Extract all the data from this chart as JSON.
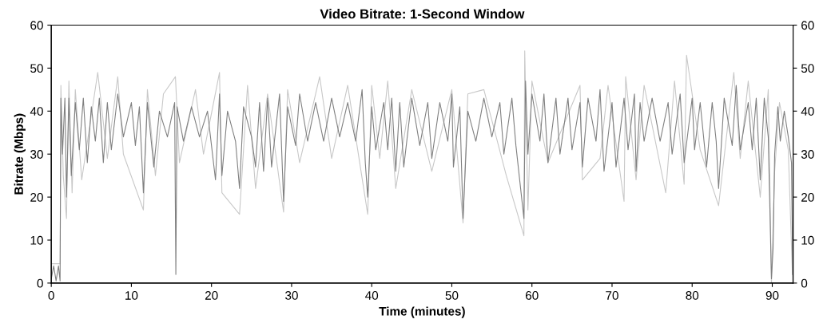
{
  "chart_data": {
    "type": "line",
    "title": "Video Bitrate: 1-Second Window",
    "xlabel": "Time (minutes)",
    "ylabel": "Bitrate (Mbps)",
    "xlim": [
      0,
      92.6
    ],
    "xticks": [
      0,
      10,
      20,
      30,
      40,
      50,
      60,
      70,
      80,
      90
    ],
    "ylim": [
      0,
      60
    ],
    "yticks": [
      0,
      10,
      20,
      30,
      40,
      50,
      60
    ],
    "y2lim": [
      0,
      60
    ],
    "y2ticks": [
      0,
      10,
      20,
      30,
      40,
      50,
      60
    ],
    "grid": false,
    "marker": "none",
    "line_style": "solid",
    "series": [
      {
        "color": "#c8c8c8",
        "x": [
          0,
          1.1,
          1.2,
          1.5,
          1.9,
          2.2,
          2.6,
          3,
          3.8,
          5.8,
          7,
          8.3,
          9,
          11.5,
          12,
          13,
          14,
          15.5,
          16,
          18,
          19,
          21,
          21.3,
          23.5,
          24.5,
          25.5,
          27,
          29,
          29.5,
          31,
          33.5,
          35,
          37,
          39.5,
          40,
          41,
          42,
          43,
          45,
          47.5,
          50,
          51.4,
          52,
          54,
          56.8,
          59,
          59.1,
          59.5,
          60,
          62,
          66,
          66.3,
          68.5,
          69.5,
          71.5,
          71.7,
          73,
          74,
          76.7,
          77.8,
          79,
          79.3,
          81,
          83.3,
          85.2,
          86,
          87,
          88.5,
          89.5,
          89.9,
          90.3,
          90.9,
          92,
          92.55
        ],
        "values": [
          4.5,
          4.5,
          46,
          25,
          15,
          47,
          21,
          45,
          24,
          49,
          29,
          48,
          30,
          17,
          45,
          25,
          44,
          48,
          28,
          45,
          30,
          49,
          21,
          16,
          46,
          22,
          44,
          16.5,
          45,
          28,
          48,
          29,
          46,
          16,
          46,
          29,
          47,
          22,
          45,
          26,
          45,
          14,
          44,
          45,
          25,
          11,
          54,
          17,
          47,
          28,
          46,
          24,
          29,
          46,
          19,
          48,
          24,
          46,
          21,
          47,
          23,
          53,
          31,
          18,
          49,
          29,
          47,
          20,
          45,
          0,
          26,
          42,
          31,
          0
        ]
      },
      {
        "color": "#808080",
        "x": [
          0,
          0.3,
          0.6,
          0.9,
          1.1,
          1.2,
          1.4,
          1.7,
          1.9,
          2.2,
          2.5,
          3,
          3.5,
          4,
          4.5,
          5,
          5.5,
          6,
          6.5,
          7,
          7.5,
          8.3,
          9,
          10,
          10.5,
          11,
          11.5,
          12,
          12.8,
          13.5,
          14.5,
          15.4,
          15.55,
          15.7,
          16.5,
          17.5,
          18.5,
          19.5,
          20.5,
          21,
          21.3,
          22,
          23,
          23.5,
          24,
          25,
          25.5,
          26,
          26.5,
          27,
          27.5,
          28.5,
          29,
          29.5,
          30.5,
          31,
          32,
          33,
          34,
          35,
          36,
          37,
          38,
          38.8,
          39.2,
          39.5,
          40,
          40.5,
          41.5,
          42,
          42.5,
          43,
          43.5,
          44,
          45,
          46,
          47,
          47.5,
          48.5,
          49.5,
          50,
          50.2,
          51,
          51.4,
          52,
          53,
          54,
          55,
          56,
          56.5,
          57.5,
          58,
          59,
          59.2,
          59.5,
          60,
          61,
          61.5,
          62,
          63,
          63.5,
          64.5,
          65,
          66,
          66.3,
          67,
          68,
          68.5,
          69,
          70,
          70.5,
          71.5,
          72,
          72.8,
          73,
          73.5,
          74,
          75,
          76,
          77,
          77.5,
          78.5,
          79,
          80,
          80.3,
          81,
          81.8,
          82.5,
          83,
          83.3,
          84,
          85,
          85.5,
          86,
          87,
          87.5,
          88,
          88.5,
          89,
          89.5,
          89.9,
          90.1,
          90.3,
          90.7,
          91,
          91.5,
          92,
          92.4,
          92.55
        ],
        "values": [
          1,
          4,
          0.5,
          4,
          0.5,
          43,
          30,
          43,
          20,
          43,
          25,
          42,
          31,
          43,
          28,
          41,
          33,
          43,
          28,
          42,
          31,
          44,
          34,
          42,
          32,
          41,
          21,
          42,
          27,
          40,
          34,
          42,
          2,
          41,
          33,
          41,
          34,
          40,
          24,
          44,
          25,
          40,
          33,
          22,
          41,
          34,
          27,
          42,
          26,
          43,
          27,
          44,
          19,
          41,
          32,
          44,
          33,
          42,
          33,
          43,
          34,
          42,
          33,
          45,
          28,
          20,
          41,
          31,
          42,
          31,
          43,
          26,
          42,
          27,
          43,
          32,
          42,
          29,
          42,
          33,
          44,
          27,
          41,
          15,
          40,
          33,
          43,
          34,
          42,
          30,
          43,
          32,
          15,
          47,
          30,
          44,
          33,
          44,
          28,
          43,
          30,
          43,
          31,
          42,
          27,
          43,
          33,
          45,
          26,
          42,
          27,
          43,
          31,
          44,
          26,
          42,
          33,
          43,
          33,
          42,
          30,
          44,
          28,
          43,
          31,
          42,
          27,
          42,
          33,
          22,
          43,
          32,
          46,
          31,
          42,
          31,
          43,
          24,
          43,
          34,
          1,
          8,
          30,
          41,
          33,
          40,
          34,
          28,
          2
        ]
      }
    ]
  }
}
